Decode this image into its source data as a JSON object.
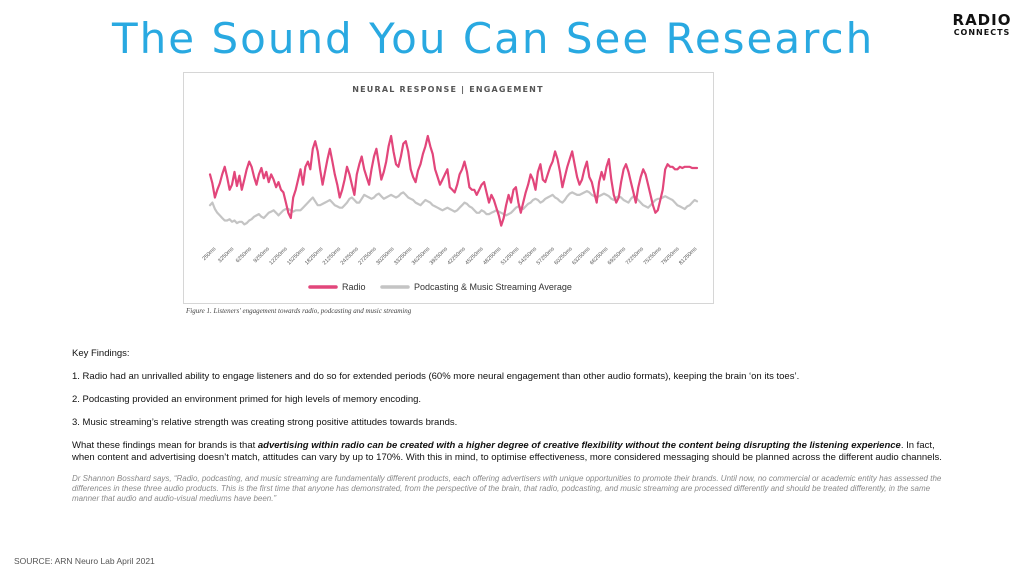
{
  "page": {
    "title": "The Sound You Can See Research",
    "logo_line1": "RADIO",
    "logo_line2": "CONNECTS",
    "caption": "Figure 1. Listeners' engagement towards radio, podcasting and music streaming",
    "key_findings_heading": "Key Findings:",
    "findings": [
      "1. Radio had an unrivalled ability to engage listeners and do so for extended periods (60% more neural engagement than other audio formats), keeping the brain ‘on its toes’.",
      "2. Podcasting provided an environment primed for high levels of memory encoding.",
      "3. Music streaming’s relative strength was creating strong positive attitudes towards brands."
    ],
    "meaning_pre": "What these findings mean for brands is that ",
    "meaning_bold": "advertising within radio can be created with a higher degree of creative flexibility without the content being disrupting the listening experience",
    "meaning_post": ". In fact, when content and advertising doesn’t match, attitudes can vary by up to 170%. With this in mind, to optimise effectiveness, more considered messaging should be planned across the different audio channels.",
    "quote": "Dr Shannon Bosshard says, “Radio, podcasting, and music streaming are fundamentally different products, each offering advertisers with unique opportunities to promote their brands. Until now, no commercial or academic entity has assessed the differences in these three audio products. This is the first time that anyone has demonstrated, from the perspective of the brain, that radio, podcasting, and music streaming are processed differently and should be treated differently, in the same manner that audio and audio-visual mediums have been.”",
    "source": "SOURCE: ARN Neuro Lab April 2021"
  },
  "colors": {
    "title": "#29a9e1",
    "radio": "#e2467b",
    "streaming": "#c4c4c4"
  },
  "chart_data": {
    "type": "line",
    "title": "NEURAL RESPONSE | ENGAGEMENT",
    "xlabel": "",
    "ylabel": "",
    "grid": false,
    "legend": "bottom",
    "x_tick_labels": [
      "250ms",
      "3250ms",
      "6250ms",
      "9250ms",
      "12250ms",
      "15250ms",
      "18250ms",
      "21250ms",
      "24250ms",
      "27250ms",
      "30250ms",
      "33250ms",
      "36250ms",
      "39250ms",
      "42250ms",
      "45250ms",
      "48250ms",
      "51250ms",
      "54250ms",
      "57250ms",
      "60250ms",
      "63250ms",
      "66250ms",
      "69250ms",
      "72250ms",
      "75250ms",
      "78250ms",
      "81250ms"
    ],
    "x": [
      0,
      1,
      2,
      3,
      4,
      5,
      6,
      7,
      8,
      9,
      10,
      11,
      12,
      13,
      14,
      15,
      16,
      17,
      18,
      19,
      20,
      21,
      22,
      23,
      24,
      25,
      26,
      27,
      28,
      29,
      30,
      31,
      32,
      33,
      34,
      35,
      36,
      37,
      38,
      39,
      40,
      41,
      42,
      43,
      44,
      45,
      46,
      47,
      48,
      49,
      50,
      51,
      52,
      53,
      54,
      55,
      56,
      57,
      58,
      59,
      60,
      61,
      62,
      63,
      64,
      65,
      66,
      67,
      68,
      69,
      70,
      71,
      72,
      73,
      74,
      75,
      76,
      77,
      78,
      79,
      80,
      81,
      82,
      83,
      84,
      85,
      86,
      87,
      88,
      89,
      90,
      91,
      92,
      93,
      94,
      95,
      96,
      97,
      98,
      99,
      100,
      101,
      102,
      103,
      104,
      105,
      106,
      107,
      108,
      109,
      110,
      111,
      112,
      113,
      114,
      115,
      116,
      117,
      118,
      119,
      120,
      121,
      122,
      123,
      124,
      125,
      126,
      127,
      128,
      129,
      130,
      131,
      132,
      133,
      134,
      135,
      136,
      137,
      138,
      139,
      140,
      141,
      142,
      143,
      144,
      145,
      146,
      147,
      148,
      149,
      150,
      151,
      152,
      153,
      154,
      155,
      156,
      157,
      158,
      159,
      160,
      161,
      162,
      163,
      164,
      165,
      166,
      167,
      168,
      169,
      170,
      171,
      172,
      173,
      174,
      175,
      176,
      177,
      178,
      179,
      180,
      181,
      182,
      183,
      184,
      185,
      186,
      187,
      188,
      189,
      190,
      191,
      192,
      193,
      194,
      195,
      196,
      197,
      198,
      199
    ],
    "ylim": [
      0,
      100
    ],
    "series": [
      {
        "name": "Radio",
        "values": [
          52,
          45,
          34,
          40,
          45,
          52,
          58,
          50,
          40,
          44,
          54,
          43,
          51,
          40,
          48,
          56,
          62,
          58,
          50,
          44,
          52,
          57,
          49,
          54,
          46,
          52,
          48,
          42,
          46,
          40,
          38,
          30,
          22,
          18,
          34,
          40,
          48,
          56,
          44,
          58,
          62,
          56,
          72,
          78,
          70,
          56,
          44,
          54,
          64,
          72,
          62,
          52,
          44,
          34,
          40,
          48,
          58,
          52,
          44,
          36,
          52,
          60,
          66,
          56,
          50,
          44,
          56,
          66,
          72,
          60,
          48,
          54,
          62,
          74,
          82,
          70,
          60,
          58,
          66,
          76,
          78,
          70,
          56,
          50,
          46,
          55,
          60,
          68,
          74,
          82,
          74,
          68,
          56,
          50,
          44,
          48,
          52,
          56,
          42,
          40,
          38,
          44,
          52,
          56,
          62,
          54,
          42,
          40,
          40,
          36,
          40,
          44,
          46,
          38,
          30,
          36,
          32,
          26,
          20,
          12,
          18,
          28,
          36,
          30,
          40,
          42,
          30,
          22,
          30,
          38,
          44,
          52,
          48,
          40,
          54,
          60,
          48,
          46,
          52,
          58,
          62,
          70,
          64,
          54,
          42,
          50,
          58,
          64,
          70,
          60,
          50,
          44,
          48,
          56,
          62,
          50,
          46,
          38,
          30,
          46,
          54,
          48,
          58,
          64,
          48,
          36,
          30,
          34,
          46,
          56,
          60,
          54,
          46,
          38,
          30,
          42,
          50,
          56,
          52,
          44,
          36,
          28,
          22,
          24,
          32,
          40,
          56,
          60,
          58,
          58,
          56,
          56,
          58,
          57,
          58,
          58,
          58,
          57,
          57,
          57
        ]
      },
      {
        "name": "Podcasting & Music Streaming Average",
        "values": [
          28,
          30,
          25,
          22,
          20,
          18,
          16,
          16,
          17,
          15,
          16,
          14,
          15,
          15,
          13,
          14,
          16,
          17,
          19,
          20,
          21,
          19,
          18,
          20,
          22,
          23,
          24,
          22,
          20,
          22,
          24,
          25,
          25,
          24,
          23,
          24,
          24,
          24,
          26,
          28,
          30,
          32,
          34,
          31,
          28,
          28,
          29,
          30,
          31,
          32,
          30,
          28,
          27,
          26,
          26,
          28,
          30,
          33,
          34,
          32,
          30,
          30,
          33,
          36,
          35,
          34,
          33,
          34,
          36,
          37,
          35,
          33,
          34,
          35,
          36,
          35,
          34,
          35,
          37,
          38,
          36,
          34,
          33,
          32,
          30,
          29,
          28,
          30,
          32,
          31,
          30,
          28,
          27,
          26,
          25,
          24,
          25,
          26,
          25,
          24,
          23,
          24,
          26,
          28,
          30,
          29,
          27,
          26,
          24,
          22,
          22,
          24,
          23,
          21,
          21,
          22,
          23,
          24,
          23,
          22,
          21,
          20,
          21,
          22,
          24,
          26,
          27,
          26,
          25,
          27,
          29,
          30,
          32,
          33,
          32,
          30,
          31,
          33,
          34,
          35,
          36,
          34,
          33,
          31,
          30,
          32,
          35,
          37,
          38,
          37,
          36,
          36,
          37,
          38,
          39,
          38,
          36,
          35,
          34,
          35,
          36,
          37,
          36,
          35,
          33,
          32,
          34,
          35,
          34,
          32,
          31,
          30,
          33,
          35,
          34,
          32,
          30,
          28,
          27,
          26,
          28,
          30,
          32,
          33,
          33,
          34,
          35,
          34,
          33,
          32,
          30,
          28,
          27,
          26,
          25,
          27,
          28,
          30,
          32,
          31
        ]
      }
    ]
  }
}
